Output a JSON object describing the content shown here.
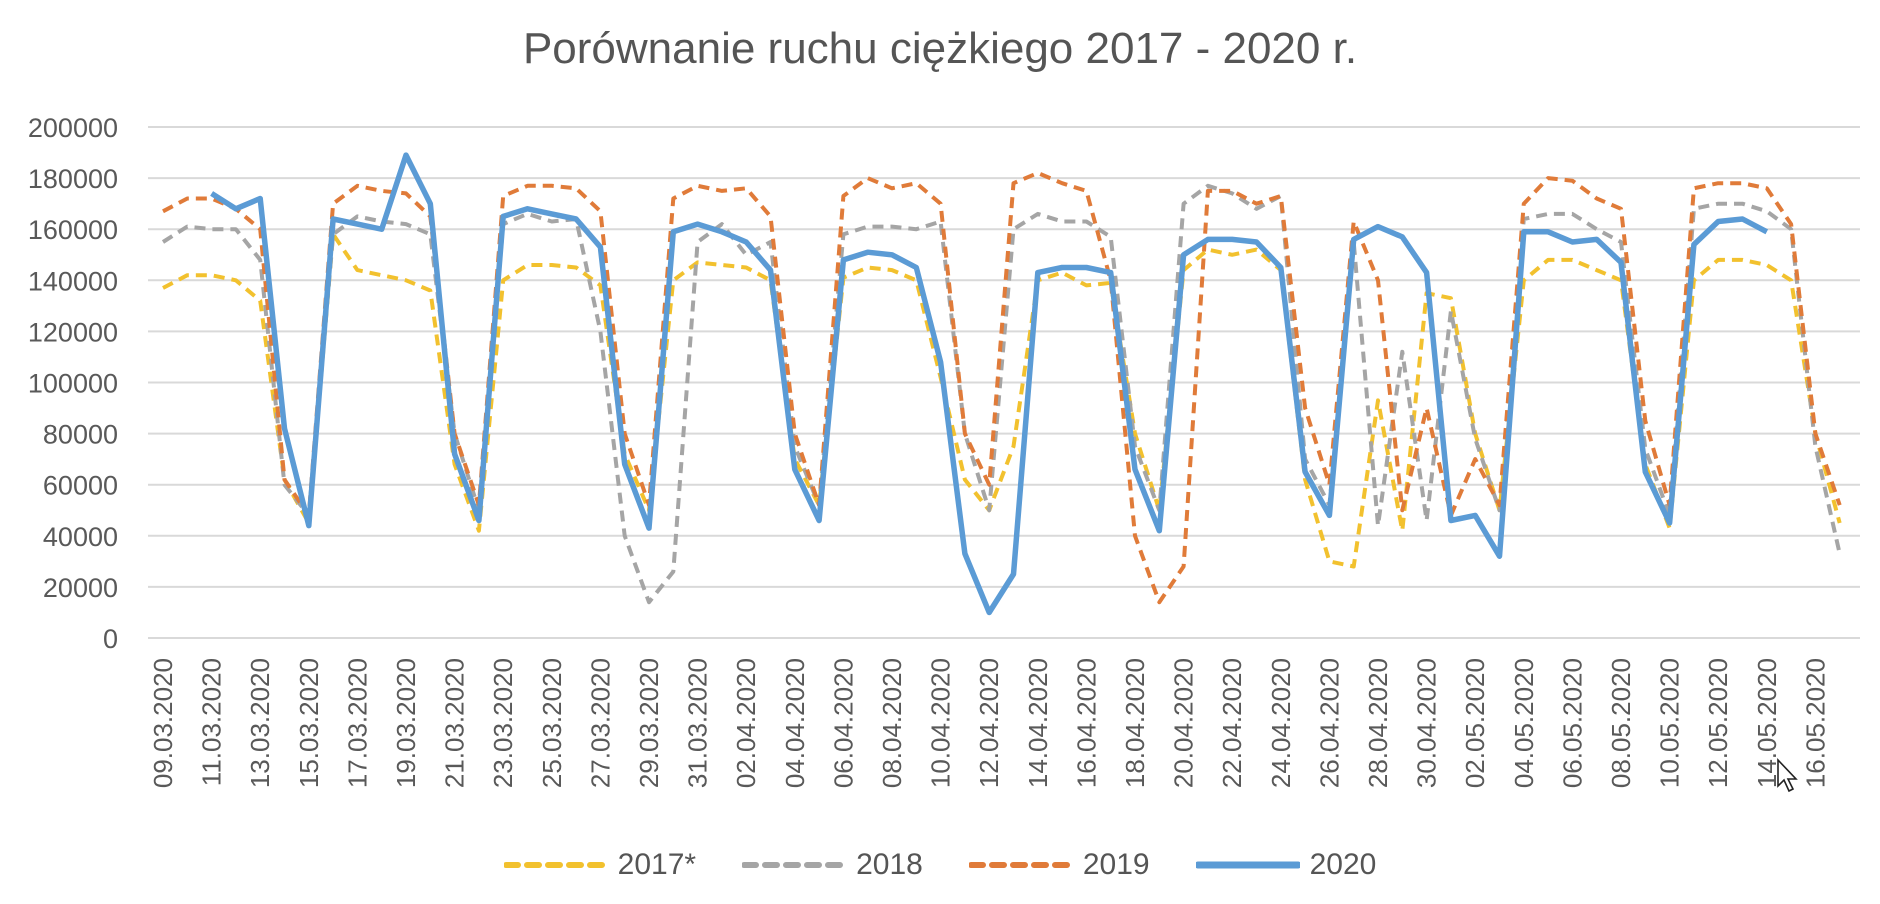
{
  "chart_data": {
    "type": "line",
    "title": "Porównanie ruchu ciężkiego 2017 - 2020 r.",
    "xlabel": "",
    "ylabel": "",
    "ylim": [
      0,
      200000
    ],
    "yticks": [
      0,
      20000,
      40000,
      60000,
      80000,
      100000,
      120000,
      140000,
      160000,
      180000,
      200000
    ],
    "ytick_labels": [
      "0",
      "20000",
      "40000",
      "60000",
      "80000",
      "100000",
      "120000",
      "140000",
      "160000",
      "180000",
      "200000"
    ],
    "grid": true,
    "legend_position": "bottom",
    "x": [
      "09.03.2020",
      "10.03.2020",
      "11.03.2020",
      "12.03.2020",
      "13.03.2020",
      "14.03.2020",
      "15.03.2020",
      "16.03.2020",
      "17.03.2020",
      "18.03.2020",
      "19.03.2020",
      "20.03.2020",
      "21.03.2020",
      "22.03.2020",
      "23.03.2020",
      "24.03.2020",
      "25.03.2020",
      "26.03.2020",
      "27.03.2020",
      "28.03.2020",
      "29.03.2020",
      "30.03.2020",
      "31.03.2020",
      "01.04.2020",
      "02.04.2020",
      "03.04.2020",
      "04.04.2020",
      "05.04.2020",
      "06.04.2020",
      "07.04.2020",
      "08.04.2020",
      "09.04.2020",
      "10.04.2020",
      "11.04.2020",
      "12.04.2020",
      "13.04.2020",
      "14.04.2020",
      "15.04.2020",
      "16.04.2020",
      "17.04.2020",
      "18.04.2020",
      "19.04.2020",
      "20.04.2020",
      "21.04.2020",
      "22.04.2020",
      "23.04.2020",
      "24.04.2020",
      "25.04.2020",
      "26.04.2020",
      "27.04.2020",
      "28.04.2020",
      "29.04.2020",
      "30.04.2020",
      "01.05.2020",
      "02.05.2020",
      "03.05.2020",
      "04.05.2020",
      "05.05.2020",
      "06.05.2020",
      "07.05.2020",
      "08.05.2020",
      "09.05.2020",
      "10.05.2020",
      "11.05.2020",
      "12.05.2020",
      "13.05.2020",
      "14.05.2020",
      "15.05.2020",
      "16.05.2020",
      "17.05.2020"
    ],
    "tick_labels": [
      "09.03.2020",
      "11.03.2020",
      "13.03.2020",
      "15.03.2020",
      "17.03.2020",
      "19.03.2020",
      "21.03.2020",
      "23.03.2020",
      "25.03.2020",
      "27.03.2020",
      "29.03.2020",
      "31.03.2020",
      "02.04.2020",
      "04.04.2020",
      "06.04.2020",
      "08.04.2020",
      "10.04.2020",
      "12.04.2020",
      "14.04.2020",
      "16.04.2020",
      "18.04.2020",
      "20.04.2020",
      "22.04.2020",
      "24.04.2020",
      "26.04.2020",
      "28.04.2020",
      "30.04.2020",
      "02.05.2020",
      "04.05.2020",
      "06.05.2020",
      "08.05.2020",
      "10.05.2020",
      "12.05.2020",
      "14.05.2020",
      "16.05.2020"
    ],
    "series": [
      {
        "name": "2017*",
        "color": "#F2C12E",
        "dash": "dashed",
        "values": [
          137000,
          142000,
          142000,
          140000,
          132000,
          62000,
          45000,
          158000,
          144000,
          142000,
          140000,
          136000,
          68000,
          42000,
          140000,
          146000,
          146000,
          145000,
          138000,
          72000,
          50000,
          140000,
          147000,
          146000,
          145000,
          140000,
          70000,
          52000,
          141000,
          145000,
          144000,
          140000,
          102000,
          62000,
          50000,
          75000,
          140000,
          143000,
          138000,
          139000,
          80000,
          50000,
          144000,
          152000,
          150000,
          152000,
          144000,
          62000,
          30000,
          28000,
          93000,
          42000,
          135000,
          133000,
          80000,
          50000,
          140000,
          148000,
          148000,
          144000,
          140000,
          68000,
          43000,
          140000,
          148000,
          148000,
          146000,
          140000,
          80000,
          45000
        ]
      },
      {
        "name": "2018",
        "color": "#A5A5A5",
        "dash": "dashed",
        "values": [
          155000,
          161000,
          160000,
          160000,
          148000,
          60000,
          48000,
          158000,
          165000,
          163000,
          162000,
          158000,
          80000,
          50000,
          162000,
          166000,
          163000,
          164000,
          120000,
          40000,
          14000,
          26000,
          155000,
          162000,
          150000,
          155000,
          75000,
          52000,
          158000,
          161000,
          161000,
          160000,
          163000,
          80000,
          50000,
          160000,
          166000,
          163000,
          163000,
          157000,
          75000,
          50000,
          170000,
          177000,
          174000,
          168000,
          173000,
          70000,
          52000,
          155000,
          44000,
          112000,
          46000,
          128000,
          78000,
          50000,
          164000,
          166000,
          166000,
          160000,
          155000,
          74000,
          48000,
          168000,
          170000,
          170000,
          167000,
          160000,
          75000,
          33000
        ]
      },
      {
        "name": "2019",
        "color": "#E07B39",
        "dash": "dashed",
        "values": [
          167000,
          172000,
          172000,
          168000,
          160000,
          62000,
          48000,
          170000,
          177000,
          175000,
          174000,
          165000,
          80000,
          52000,
          173000,
          177000,
          177000,
          176000,
          167000,
          80000,
          52000,
          172000,
          177000,
          175000,
          176000,
          165000,
          80000,
          52000,
          173000,
          180000,
          176000,
          178000,
          170000,
          80000,
          60000,
          178000,
          182000,
          178000,
          175000,
          140000,
          40000,
          14000,
          28000,
          175000,
          175000,
          170000,
          173000,
          90000,
          60000,
          163000,
          140000,
          50000,
          90000,
          48000,
          70000,
          52000,
          170000,
          180000,
          179000,
          172000,
          168000,
          85000,
          52000,
          176000,
          178000,
          178000,
          176000,
          162000,
          80000,
          52000
        ]
      },
      {
        "name": "2020",
        "color": "#5B9BD5",
        "dash": "solid",
        "values": [
          null,
          null,
          174000,
          168000,
          172000,
          82000,
          44000,
          164000,
          162000,
          160000,
          189000,
          170000,
          72000,
          46000,
          165000,
          168000,
          166000,
          164000,
          153000,
          68000,
          43000,
          159000,
          162000,
          159000,
          155000,
          144000,
          66000,
          46000,
          148000,
          151000,
          150000,
          145000,
          108000,
          33000,
          10000,
          25000,
          143000,
          145000,
          145000,
          143000,
          66000,
          42000,
          150000,
          156000,
          156000,
          155000,
          145000,
          65000,
          48000,
          156000,
          161000,
          157000,
          143000,
          46000,
          48000,
          32000,
          159000,
          159000,
          155000,
          156000,
          147000,
          65000,
          45000,
          154000,
          163000,
          164000,
          159000,
          null,
          null,
          null
        ]
      }
    ]
  },
  "cursor": "pointer-arrow"
}
